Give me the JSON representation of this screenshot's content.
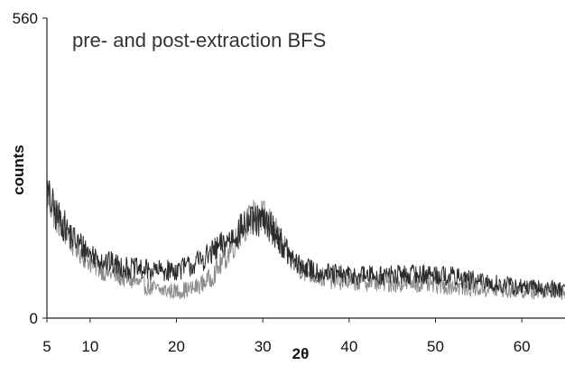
{
  "chart_data": {
    "type": "line",
    "title": "pre- and post-extraction BFS",
    "xlabel": "2θ",
    "ylabel": "counts",
    "xlim": [
      5,
      65
    ],
    "ylim": [
      0,
      560
    ],
    "x_ticks": [
      5,
      10,
      20,
      30,
      40,
      50,
      60
    ],
    "y_ticks": [
      0,
      560
    ],
    "x_tick_labels": [
      "5",
      "10",
      "20",
      "30",
      "40",
      "50",
      "60"
    ],
    "y_tick_labels": [
      "0",
      "560"
    ],
    "grid": false,
    "legend": "none",
    "series_colors": [
      "#8c8c8c",
      "#2b2b2b"
    ],
    "series": [
      {
        "x": [
          5,
          6,
          8,
          10,
          12,
          14,
          16,
          18,
          20,
          22,
          24,
          26,
          28,
          29,
          30,
          31,
          32,
          33,
          34,
          36,
          38,
          40,
          42,
          45,
          48,
          50,
          52,
          55,
          58,
          60,
          62,
          65
        ],
        "values": [
          230,
          190,
          140,
          105,
          85,
          75,
          62,
          52,
          50,
          55,
          75,
          120,
          175,
          190,
          190,
          175,
          145,
          115,
          95,
          80,
          72,
          68,
          68,
          65,
          65,
          62,
          60,
          55,
          52,
          52,
          50,
          50
        ]
      },
      {
        "x": [
          5,
          6,
          8,
          10,
          12,
          14,
          16,
          18,
          20,
          22,
          24,
          26,
          28,
          29,
          30,
          31,
          32,
          33,
          34,
          36,
          38,
          40,
          42,
          45,
          48,
          50,
          52,
          55,
          58,
          60,
          62,
          65
        ],
        "values": [
          235,
          195,
          150,
          120,
          105,
          95,
          90,
          88,
          90,
          100,
          120,
          145,
          175,
          180,
          180,
          170,
          145,
          118,
          100,
          88,
          82,
          80,
          80,
          80,
          82,
          82,
          78,
          68,
          62,
          58,
          55,
          55
        ]
      }
    ]
  }
}
